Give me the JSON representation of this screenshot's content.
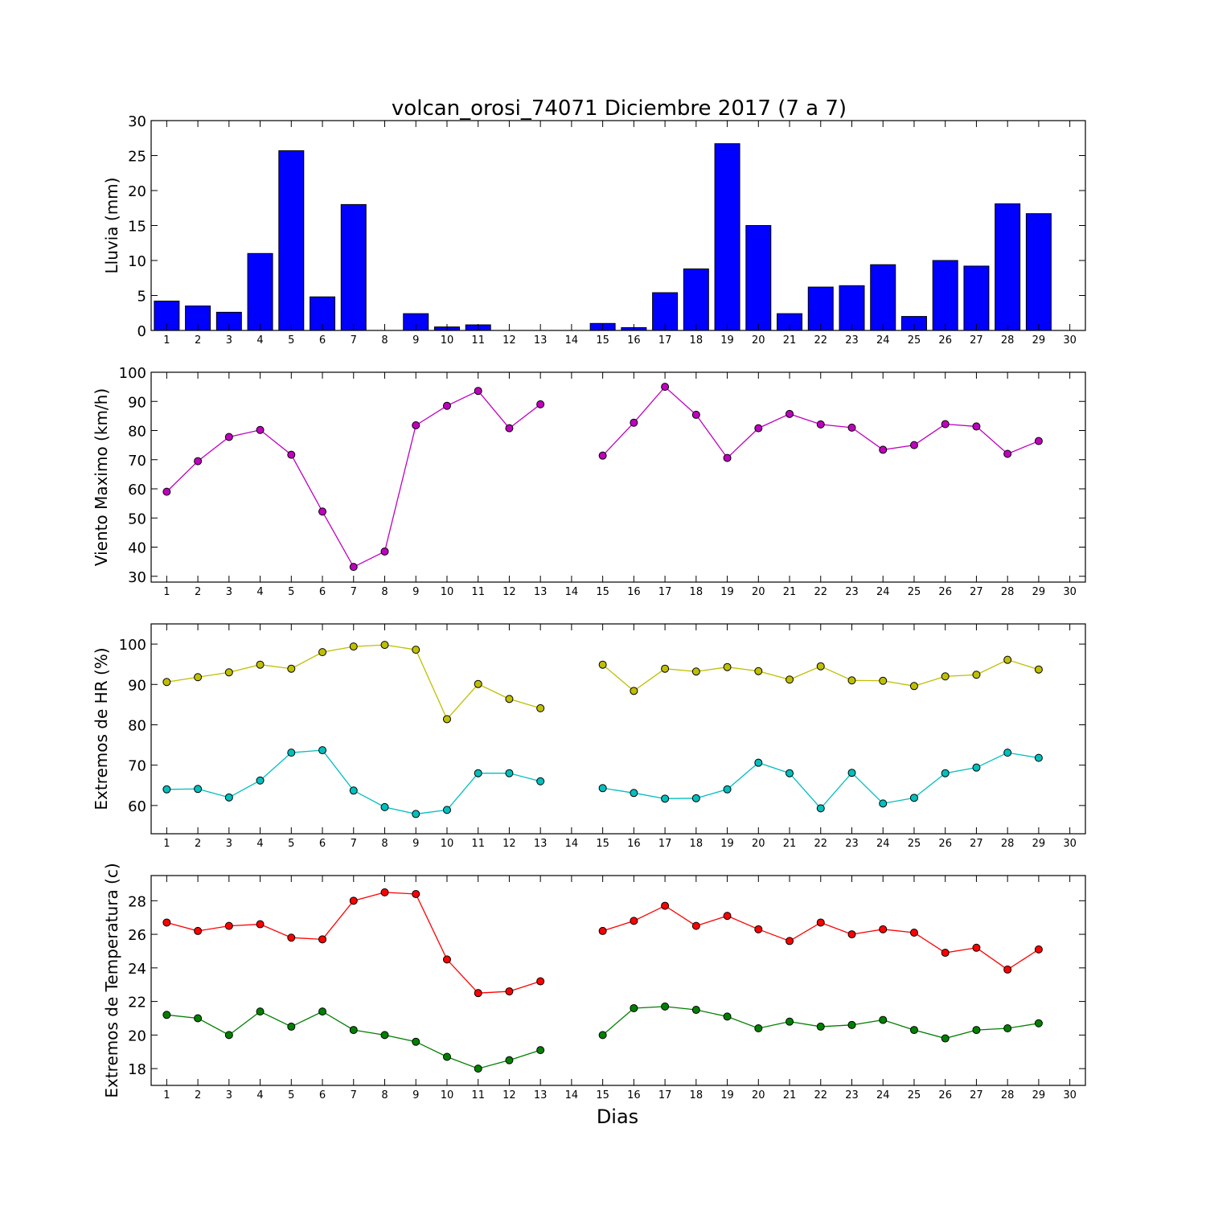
{
  "figure": {
    "title": "volcan_orosi_74071 Diciembre 2017  (7 a 7)",
    "xlabel": "Dias",
    "xticks": [
      "1",
      "2",
      "3",
      "4",
      "5",
      "6",
      "7",
      "8",
      "9",
      "10",
      "11",
      "12",
      "13",
      "14",
      "15",
      "16",
      "17",
      "18",
      "19",
      "20",
      "21",
      "22",
      "23",
      "24",
      "25",
      "26",
      "27",
      "28",
      "29",
      "30"
    ]
  },
  "chart_data": [
    {
      "type": "bar",
      "title": "volcan_orosi_74071 Diciembre 2017  (7 a 7)",
      "ylabel": "Lluvia (mm)",
      "xlim": [
        0.5,
        30.5
      ],
      "ylim": [
        0,
        30
      ],
      "yticks": [
        0,
        5,
        10,
        15,
        20,
        25,
        30
      ],
      "grid": false,
      "series": [
        {
          "color": "#0000ff",
          "x": [
            1,
            2,
            3,
            4,
            5,
            6,
            7,
            8,
            9,
            10,
            11,
            12,
            13,
            14,
            15,
            16,
            17,
            18,
            19,
            20,
            21,
            22,
            23,
            24,
            25,
            26,
            27,
            28,
            29
          ],
          "values": [
            4.2,
            3.5,
            2.6,
            11.0,
            25.7,
            4.8,
            18.0,
            0,
            2.4,
            0.5,
            0.8,
            0,
            0,
            0,
            1.0,
            0.4,
            5.4,
            8.8,
            26.7,
            15.0,
            2.4,
            6.2,
            6.4,
            9.4,
            2.0,
            10.0,
            9.2,
            18.1,
            16.7
          ]
        }
      ]
    },
    {
      "type": "line",
      "ylabel": "Viento Maximo (km/h)",
      "xlim": [
        0.5,
        30.5
      ],
      "ylim": [
        28,
        100
      ],
      "yticks": [
        30,
        40,
        50,
        60,
        70,
        80,
        90,
        100
      ],
      "grid": false,
      "series": [
        {
          "color": "#bf00bf",
          "x": [
            1,
            2,
            3,
            4,
            5,
            6,
            7,
            8,
            9,
            10,
            11,
            12,
            13,
            14,
            15,
            16,
            17,
            18,
            19,
            20,
            21,
            22,
            23,
            24,
            25,
            26,
            27,
            28,
            29
          ],
          "values": [
            59,
            69.5,
            77.8,
            80.2,
            71.7,
            52.2,
            33.2,
            38.5,
            81.8,
            88.5,
            93.6,
            80.8,
            89.0,
            null,
            71.4,
            82.7,
            95.0,
            85.4,
            70.6,
            80.8,
            85.7,
            82.1,
            81.0,
            73.4,
            75.0,
            82.2,
            81.4,
            72.0,
            76.4
          ]
        }
      ]
    },
    {
      "type": "line",
      "ylabel": "Extremos de HR (%)",
      "xlim": [
        0.5,
        30.5
      ],
      "ylim": [
        53,
        105
      ],
      "yticks": [
        60,
        70,
        80,
        90,
        100
      ],
      "grid": false,
      "series": [
        {
          "color": "#bfbf00",
          "x": [
            1,
            2,
            3,
            4,
            5,
            6,
            7,
            8,
            9,
            10,
            11,
            12,
            13,
            14,
            15,
            16,
            17,
            18,
            19,
            20,
            21,
            22,
            23,
            24,
            25,
            26,
            27,
            28,
            29
          ],
          "values": [
            90.6,
            91.8,
            93.0,
            94.9,
            93.9,
            98.0,
            99.4,
            99.8,
            98.6,
            81.4,
            90.1,
            86.4,
            84.1,
            null,
            94.9,
            88.4,
            93.9,
            93.2,
            94.3,
            93.3,
            91.2,
            94.5,
            91.0,
            90.9,
            89.6,
            92.0,
            92.4,
            96.1,
            93.7
          ]
        },
        {
          "color": "#00bfbf",
          "x": [
            1,
            2,
            3,
            4,
            5,
            6,
            7,
            8,
            9,
            10,
            11,
            12,
            13,
            14,
            15,
            16,
            17,
            18,
            19,
            20,
            21,
            22,
            23,
            24,
            25,
            26,
            27,
            28,
            29
          ],
          "values": [
            64.0,
            64.1,
            62.0,
            66.2,
            73.1,
            73.7,
            63.7,
            59.6,
            57.9,
            58.9,
            68.0,
            68.0,
            66.0,
            null,
            64.3,
            63.1,
            61.7,
            61.8,
            64.0,
            70.6,
            68.0,
            59.3,
            68.1,
            60.5,
            61.9,
            68.0,
            69.4,
            73.1,
            71.8
          ]
        }
      ]
    },
    {
      "type": "line",
      "ylabel": "Extremos de Temperatura (c)",
      "xlabel": "Dias",
      "xlim": [
        0.5,
        30.5
      ],
      "ylim": [
        17,
        29.5
      ],
      "yticks": [
        18,
        20,
        22,
        24,
        26,
        28
      ],
      "grid": false,
      "series": [
        {
          "color": "#ff0000",
          "x": [
            1,
            2,
            3,
            4,
            5,
            6,
            7,
            8,
            9,
            10,
            11,
            12,
            13,
            14,
            15,
            16,
            17,
            18,
            19,
            20,
            21,
            22,
            23,
            24,
            25,
            26,
            27,
            28,
            29
          ],
          "values": [
            26.7,
            26.2,
            26.5,
            26.6,
            25.8,
            25.7,
            28.0,
            28.5,
            28.4,
            24.5,
            22.5,
            22.6,
            23.2,
            null,
            26.2,
            26.8,
            27.7,
            26.5,
            27.1,
            26.3,
            25.6,
            26.7,
            26.0,
            26.3,
            26.1,
            24.9,
            25.2,
            23.9,
            25.1
          ]
        },
        {
          "color": "#008000",
          "x": [
            1,
            2,
            3,
            4,
            5,
            6,
            7,
            8,
            9,
            10,
            11,
            12,
            13,
            14,
            15,
            16,
            17,
            18,
            19,
            20,
            21,
            22,
            23,
            24,
            25,
            26,
            27,
            28,
            29
          ],
          "values": [
            21.2,
            21.0,
            20.0,
            21.4,
            20.5,
            21.4,
            20.3,
            20.0,
            19.6,
            18.7,
            18.0,
            18.5,
            19.1,
            null,
            20.0,
            21.6,
            21.7,
            21.5,
            21.1,
            20.4,
            20.8,
            20.5,
            20.6,
            20.9,
            20.3,
            19.8,
            20.3,
            20.4,
            20.7
          ]
        }
      ]
    }
  ]
}
